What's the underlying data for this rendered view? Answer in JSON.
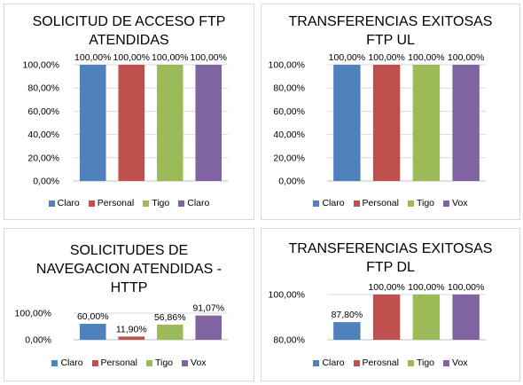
{
  "colors": [
    "#4f81bd",
    "#c0504d",
    "#9bbb59",
    "#8064a2"
  ],
  "chart_data": [
    {
      "type": "bar",
      "title_lines": [
        "SOLICITUD DE ACCESO FTP",
        "ATENDIDAS"
      ],
      "categories": [
        "Claro",
        "Personal",
        "Tigo",
        "Claro"
      ],
      "values": [
        100,
        100,
        100,
        100
      ],
      "value_labels": [
        "100,00%",
        "100,00%",
        "100,00%",
        "100,00%"
      ],
      "yticks": [
        "100,00%",
        "80,00%",
        "60,00%",
        "40,00%",
        "20,00%",
        "0,00%"
      ],
      "ylim": [
        0,
        100
      ],
      "legend": "bottom"
    },
    {
      "type": "bar",
      "title_lines": [
        "TRANSFERENCIAS EXITOSAS",
        "FTP UL"
      ],
      "categories": [
        "Claro",
        "Personal",
        "Tigo",
        "Vox"
      ],
      "values": [
        100,
        100,
        100,
        100
      ],
      "value_labels": [
        "100,00%",
        "100,00%",
        "100,00%",
        "100,00%"
      ],
      "yticks": [
        "100,00%",
        "80,00%",
        "60,00%",
        "40,00%",
        "20,00%",
        "0,00%"
      ],
      "ylim": [
        0,
        100
      ],
      "legend": "bottom"
    },
    {
      "type": "bar",
      "title_lines": [
        "SOLICITUDES DE",
        "NAVEGACION ATENDIDAS -",
        "HTTP"
      ],
      "categories": [
        "Claro",
        "Personal",
        "Tigo",
        "Vox"
      ],
      "values": [
        60.0,
        11.9,
        56.86,
        91.07
      ],
      "value_labels": [
        "60,00%",
        "11,90%",
        "56,86%",
        "91,07%"
      ],
      "yticks": [
        "100,00%",
        "0,00%"
      ],
      "ylim": [
        0,
        100
      ],
      "legend": "bottom"
    },
    {
      "type": "bar",
      "title_lines": [
        "TRANSFERENCIAS EXITOSAS",
        "FTP DL"
      ],
      "categories": [
        "Claro",
        "Perosnal",
        "Tigo",
        "Vox"
      ],
      "values": [
        87.8,
        100,
        100,
        100
      ],
      "value_labels": [
        "87,80%",
        "100,00%",
        "100,00%",
        "100,00%"
      ],
      "yticks": [
        "100,00%",
        "80,00%"
      ],
      "ylim": [
        80,
        100
      ],
      "legend": "bottom"
    }
  ]
}
